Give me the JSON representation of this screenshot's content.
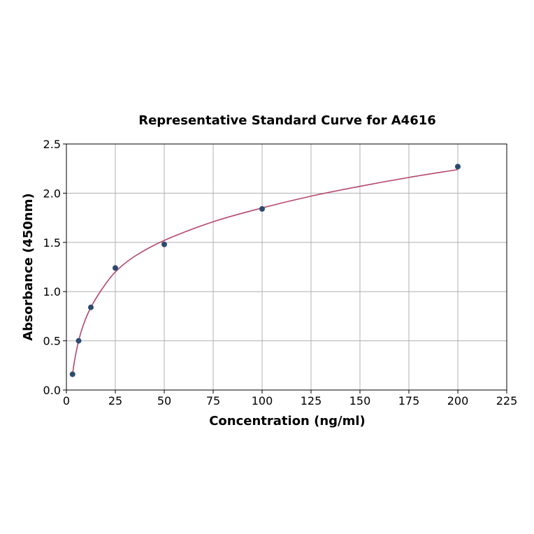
{
  "chart_data": {
    "type": "scatter",
    "title": "Representative Standard Curve for A4616",
    "xlabel": "Concentration (ng/ml)",
    "ylabel": "Absorbance (450nm)",
    "xlim": [
      0,
      225
    ],
    "ylim": [
      0,
      2.5
    ],
    "xticks": [
      "0",
      "25",
      "50",
      "75",
      "100",
      "125",
      "150",
      "175",
      "200",
      "225"
    ],
    "yticks": [
      "0.0",
      "0.5",
      "1.0",
      "1.5",
      "2.0",
      "2.5"
    ],
    "grid": true,
    "points": [
      {
        "x": 3.125,
        "y": 0.16
      },
      {
        "x": 6.25,
        "y": 0.5
      },
      {
        "x": 12.5,
        "y": 0.84
      },
      {
        "x": 25,
        "y": 1.24
      },
      {
        "x": 50,
        "y": 1.48
      },
      {
        "x": 100,
        "y": 1.84
      },
      {
        "x": 200,
        "y": 2.27
      }
    ],
    "fit_curve": [
      {
        "x": 3.125,
        "y": 0.15
      },
      {
        "x": 4,
        "y": 0.28
      },
      {
        "x": 6.25,
        "y": 0.5
      },
      {
        "x": 9,
        "y": 0.68
      },
      {
        "x": 12.5,
        "y": 0.84
      },
      {
        "x": 18,
        "y": 1.02
      },
      {
        "x": 25,
        "y": 1.2
      },
      {
        "x": 35,
        "y": 1.36
      },
      {
        "x": 50,
        "y": 1.52
      },
      {
        "x": 75,
        "y": 1.71
      },
      {
        "x": 100,
        "y": 1.85
      },
      {
        "x": 125,
        "y": 1.97
      },
      {
        "x": 150,
        "y": 2.07
      },
      {
        "x": 175,
        "y": 2.16
      },
      {
        "x": 200,
        "y": 2.24
      }
    ],
    "colors": {
      "point": "#2d4a6e",
      "curve": "#b5476a"
    }
  }
}
